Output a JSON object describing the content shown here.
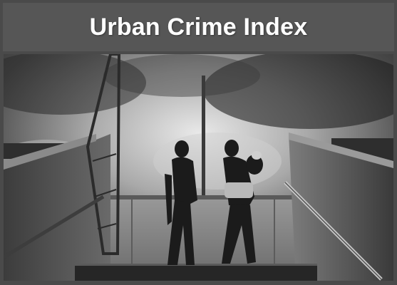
{
  "slide": {
    "title": "Urban Crime Index"
  },
  "photo": {
    "subject": "two-people-climbing-stairs-bw-photo"
  },
  "colors": {
    "frame": "#4a4a4a",
    "title_bar": "#565656",
    "title_text": "#ffffff"
  }
}
